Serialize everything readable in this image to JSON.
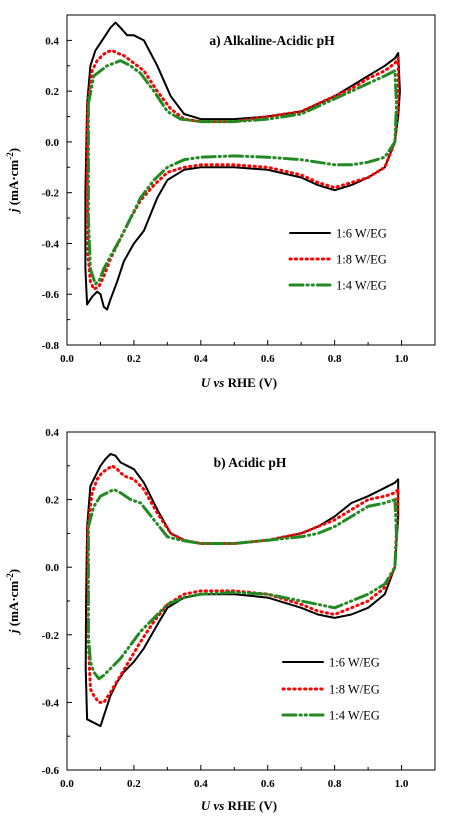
{
  "chart_data": [
    {
      "type": "line",
      "title": "a) Alkaline-Acidic pH",
      "xlabel": {
        "var": "U",
        "italic": "vs",
        "rest": "RHE (V)"
      },
      "ylabel": {
        "var": "j",
        "unit": "(mA·cm",
        "exp": "-2",
        "close": ")"
      },
      "xlim": [
        0.0,
        1.1
      ],
      "ylim": [
        -0.8,
        0.5
      ],
      "xticks": [
        "0.0",
        "0.2",
        "0.4",
        "0.6",
        "0.8",
        "1.0"
      ],
      "yticks": [
        "-0.8",
        "-0.6",
        "-0.4",
        "-0.2",
        "0.0",
        "0.2",
        "0.4"
      ],
      "grid": false,
      "legend_position": "lower-right",
      "series": [
        {
          "name": "1:6 W/EG",
          "color": "#000000",
          "style": "solid",
          "x": [
            0.06,
            0.07,
            0.085,
            0.1,
            0.115,
            0.13,
            0.145,
            0.16,
            0.18,
            0.2,
            0.23,
            0.27,
            0.31,
            0.35,
            0.4,
            0.5,
            0.6,
            0.7,
            0.75,
            0.8,
            0.85,
            0.9,
            0.95,
            0.98,
            0.99,
            0.995,
            0.99,
            0.98,
            0.95,
            0.9,
            0.85,
            0.8,
            0.75,
            0.7,
            0.6,
            0.5,
            0.4,
            0.35,
            0.3,
            0.27,
            0.23,
            0.2,
            0.17,
            0.15,
            0.13,
            0.12,
            0.11,
            0.1,
            0.09,
            0.075,
            0.06,
            0.055,
            0.055,
            0.058,
            0.06
          ],
          "y": [
            0.15,
            0.3,
            0.36,
            0.39,
            0.42,
            0.45,
            0.47,
            0.45,
            0.42,
            0.42,
            0.4,
            0.3,
            0.18,
            0.11,
            0.09,
            0.09,
            0.1,
            0.12,
            0.15,
            0.18,
            0.22,
            0.26,
            0.3,
            0.33,
            0.35,
            0.2,
            0.1,
            0.0,
            -0.1,
            -0.14,
            -0.17,
            -0.19,
            -0.17,
            -0.14,
            -0.11,
            -0.1,
            -0.1,
            -0.11,
            -0.15,
            -0.22,
            -0.35,
            -0.4,
            -0.47,
            -0.55,
            -0.62,
            -0.66,
            -0.65,
            -0.6,
            -0.59,
            -0.61,
            -0.64,
            -0.5,
            -0.2,
            0.0,
            0.15
          ]
        },
        {
          "name": "1:8 W/EG",
          "color": "#ff0000",
          "style": "dotted",
          "x": [
            0.062,
            0.075,
            0.09,
            0.105,
            0.12,
            0.135,
            0.15,
            0.17,
            0.2,
            0.23,
            0.27,
            0.31,
            0.35,
            0.4,
            0.5,
            0.6,
            0.7,
            0.75,
            0.8,
            0.85,
            0.9,
            0.95,
            0.98,
            0.99,
            0.99,
            0.98,
            0.95,
            0.9,
            0.85,
            0.8,
            0.75,
            0.7,
            0.6,
            0.5,
            0.4,
            0.35,
            0.3,
            0.26,
            0.22,
            0.19,
            0.16,
            0.13,
            0.11,
            0.095,
            0.08,
            0.07,
            0.063,
            0.06,
            0.062
          ],
          "y": [
            0.15,
            0.28,
            0.32,
            0.34,
            0.355,
            0.36,
            0.35,
            0.34,
            0.31,
            0.28,
            0.2,
            0.13,
            0.09,
            0.08,
            0.08,
            0.1,
            0.12,
            0.15,
            0.18,
            0.21,
            0.25,
            0.28,
            0.31,
            0.33,
            0.15,
            0.0,
            -0.1,
            -0.14,
            -0.16,
            -0.18,
            -0.16,
            -0.13,
            -0.1,
            -0.09,
            -0.09,
            -0.1,
            -0.12,
            -0.17,
            -0.23,
            -0.3,
            -0.38,
            -0.46,
            -0.53,
            -0.57,
            -0.58,
            -0.55,
            -0.45,
            -0.2,
            0.15
          ]
        },
        {
          "name": "1:4 W/EG",
          "color": "#238a23",
          "style": "dashdotdot",
          "x": [
            0.064,
            0.08,
            0.1,
            0.12,
            0.14,
            0.16,
            0.19,
            0.22,
            0.26,
            0.3,
            0.34,
            0.4,
            0.5,
            0.6,
            0.7,
            0.75,
            0.8,
            0.85,
            0.9,
            0.95,
            0.98,
            0.985,
            0.98,
            0.95,
            0.9,
            0.85,
            0.8,
            0.75,
            0.7,
            0.6,
            0.5,
            0.4,
            0.35,
            0.3,
            0.26,
            0.22,
            0.19,
            0.16,
            0.13,
            0.11,
            0.095,
            0.085,
            0.07,
            0.064,
            0.064
          ],
          "y": [
            0.15,
            0.26,
            0.28,
            0.3,
            0.31,
            0.32,
            0.3,
            0.27,
            0.2,
            0.12,
            0.09,
            0.08,
            0.08,
            0.09,
            0.11,
            0.14,
            0.17,
            0.2,
            0.23,
            0.26,
            0.28,
            0.15,
            0.0,
            -0.06,
            -0.08,
            -0.09,
            -0.09,
            -0.08,
            -0.07,
            -0.06,
            -0.055,
            -0.06,
            -0.07,
            -0.1,
            -0.15,
            -0.22,
            -0.3,
            -0.38,
            -0.45,
            -0.5,
            -0.55,
            -0.56,
            -0.5,
            -0.3,
            0.15
          ]
        }
      ]
    },
    {
      "type": "line",
      "title": "b) Acidic pH",
      "xlabel": {
        "var": "U",
        "italic": "vs",
        "rest": "RHE (V)"
      },
      "ylabel": {
        "var": "j",
        "unit": "(mA·cm",
        "exp": "-2",
        "close": ")"
      },
      "xlim": [
        0.0,
        1.1
      ],
      "ylim": [
        -0.6,
        0.4
      ],
      "xticks": [
        "0.0",
        "0.2",
        "0.4",
        "0.6",
        "0.8",
        "1.0"
      ],
      "yticks": [
        "-0.6",
        "-0.4",
        "-0.2",
        "0.0",
        "0.2",
        "0.4"
      ],
      "grid": false,
      "legend_position": "lower-right",
      "series": [
        {
          "name": "1:6 W/EG",
          "color": "#000000",
          "style": "solid",
          "x": [
            0.06,
            0.07,
            0.085,
            0.1,
            0.115,
            0.13,
            0.145,
            0.16,
            0.18,
            0.2,
            0.23,
            0.27,
            0.31,
            0.35,
            0.4,
            0.5,
            0.6,
            0.7,
            0.75,
            0.8,
            0.85,
            0.9,
            0.95,
            0.98,
            0.99,
            0.99,
            0.98,
            0.95,
            0.9,
            0.85,
            0.8,
            0.75,
            0.7,
            0.6,
            0.5,
            0.4,
            0.35,
            0.3,
            0.27,
            0.23,
            0.2,
            0.17,
            0.15,
            0.13,
            0.11,
            0.1,
            0.08,
            0.06,
            0.056,
            0.057,
            0.06
          ],
          "y": [
            0.12,
            0.24,
            0.27,
            0.3,
            0.32,
            0.335,
            0.33,
            0.31,
            0.3,
            0.29,
            0.25,
            0.17,
            0.1,
            0.08,
            0.07,
            0.07,
            0.08,
            0.1,
            0.12,
            0.15,
            0.19,
            0.21,
            0.235,
            0.25,
            0.26,
            0.15,
            0.0,
            -0.08,
            -0.12,
            -0.14,
            -0.15,
            -0.14,
            -0.12,
            -0.09,
            -0.08,
            -0.08,
            -0.09,
            -0.12,
            -0.17,
            -0.24,
            -0.28,
            -0.31,
            -0.34,
            -0.38,
            -0.44,
            -0.47,
            -0.46,
            -0.45,
            -0.3,
            -0.1,
            0.12
          ]
        },
        {
          "name": "1:8 W/EG",
          "color": "#ff0000",
          "style": "dotted",
          "x": [
            0.062,
            0.075,
            0.09,
            0.105,
            0.12,
            0.135,
            0.15,
            0.17,
            0.2,
            0.23,
            0.27,
            0.31,
            0.35,
            0.4,
            0.5,
            0.6,
            0.7,
            0.75,
            0.8,
            0.85,
            0.9,
            0.95,
            0.98,
            0.99,
            0.98,
            0.95,
            0.9,
            0.85,
            0.8,
            0.75,
            0.7,
            0.6,
            0.5,
            0.4,
            0.35,
            0.3,
            0.26,
            0.22,
            0.19,
            0.16,
            0.13,
            0.11,
            0.095,
            0.08,
            0.07,
            0.063,
            0.062
          ],
          "y": [
            0.12,
            0.22,
            0.26,
            0.28,
            0.29,
            0.3,
            0.29,
            0.27,
            0.26,
            0.23,
            0.16,
            0.1,
            0.08,
            0.07,
            0.07,
            0.08,
            0.1,
            0.12,
            0.14,
            0.17,
            0.2,
            0.21,
            0.22,
            0.23,
            0.0,
            -0.06,
            -0.1,
            -0.12,
            -0.14,
            -0.13,
            -0.11,
            -0.08,
            -0.07,
            -0.07,
            -0.08,
            -0.11,
            -0.16,
            -0.22,
            -0.27,
            -0.32,
            -0.37,
            -0.4,
            -0.4,
            -0.38,
            -0.36,
            -0.2,
            0.12
          ]
        },
        {
          "name": "1:4 W/EG",
          "color": "#238a23",
          "style": "dashdotdot",
          "x": [
            0.064,
            0.08,
            0.1,
            0.12,
            0.14,
            0.16,
            0.19,
            0.22,
            0.26,
            0.3,
            0.34,
            0.4,
            0.5,
            0.6,
            0.7,
            0.75,
            0.8,
            0.85,
            0.9,
            0.95,
            0.98,
            0.985,
            0.98,
            0.95,
            0.9,
            0.85,
            0.8,
            0.75,
            0.7,
            0.6,
            0.5,
            0.4,
            0.35,
            0.3,
            0.26,
            0.22,
            0.19,
            0.16,
            0.13,
            0.11,
            0.095,
            0.08,
            0.07,
            0.064,
            0.064
          ],
          "y": [
            0.12,
            0.18,
            0.21,
            0.22,
            0.23,
            0.22,
            0.2,
            0.19,
            0.14,
            0.09,
            0.08,
            0.07,
            0.07,
            0.08,
            0.09,
            0.1,
            0.12,
            0.15,
            0.18,
            0.19,
            0.2,
            0.1,
            0.0,
            -0.05,
            -0.08,
            -0.1,
            -0.12,
            -0.11,
            -0.1,
            -0.08,
            -0.075,
            -0.08,
            -0.09,
            -0.11,
            -0.15,
            -0.19,
            -0.23,
            -0.27,
            -0.3,
            -0.32,
            -0.33,
            -0.31,
            -0.28,
            -0.2,
            0.12
          ]
        }
      ]
    }
  ]
}
